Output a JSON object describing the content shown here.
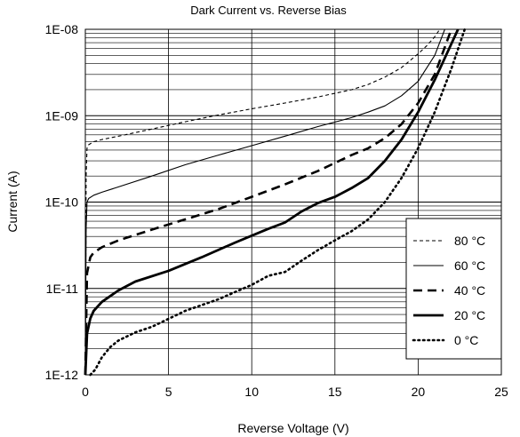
{
  "chart_data": {
    "type": "line",
    "title": "Dark Current vs. Reverse Bias",
    "xlabel": "Reverse Voltage (V)",
    "ylabel": "Current (A)",
    "xlim": [
      0,
      25
    ],
    "ylim": [
      1e-12,
      1e-08
    ],
    "y_scale": "log",
    "grid": true,
    "legend_position": "bottom-right",
    "x_ticks": [
      0,
      5,
      10,
      15,
      20,
      25
    ],
    "x_tick_labels": [
      "0",
      "5",
      "10",
      "15",
      "20",
      "25"
    ],
    "y_ticks": [
      1e-12,
      1e-11,
      1e-10,
      1e-09,
      1e-08
    ],
    "y_tick_labels": [
      "1E-12",
      "1E-11",
      "1E-10",
      "1E-09",
      "1E-08"
    ],
    "series": [
      {
        "name": "80 °C",
        "line_style": "thin-dashed",
        "x": [
          0,
          0.05,
          0.1,
          0.2,
          0.5,
          1,
          2,
          4,
          6,
          8,
          10,
          12,
          14,
          16,
          17,
          18,
          19,
          20,
          20.5,
          21,
          21.3
        ],
        "y": [
          1e-12,
          2e-10,
          4.2e-10,
          4.6e-10,
          5e-10,
          5.3e-10,
          5.8e-10,
          7e-10,
          8.5e-10,
          1.02e-09,
          1.2e-09,
          1.4e-09,
          1.65e-09,
          2e-09,
          2.3e-09,
          2.8e-09,
          3.6e-09,
          5.2e-09,
          6.4e-09,
          8.2e-09,
          1e-08
        ]
      },
      {
        "name": "60 °C",
        "line_style": "thin-solid",
        "x": [
          0,
          0.05,
          0.1,
          0.2,
          0.5,
          1,
          2,
          4,
          6,
          8,
          10,
          12,
          14,
          16,
          17,
          18,
          19,
          20,
          21,
          21.6
        ],
        "y": [
          1e-12,
          5e-11,
          1e-10,
          1.1e-10,
          1.2e-10,
          1.3e-10,
          1.5e-10,
          2e-10,
          2.7e-10,
          3.5e-10,
          4.5e-10,
          5.8e-10,
          7.5e-10,
          9.5e-10,
          1.1e-09,
          1.3e-09,
          1.7e-09,
          2.5e-09,
          5e-09,
          1e-08
        ]
      },
      {
        "name": "40 °C",
        "line_style": "thick-dashed",
        "x": [
          0,
          0.1,
          0.3,
          0.5,
          1,
          2,
          4,
          6,
          8,
          10,
          12,
          14,
          16,
          17,
          18,
          19,
          20,
          21,
          22
        ],
        "y": [
          1e-12,
          1.5e-11,
          2.3e-11,
          2.6e-11,
          3e-11,
          3.6e-11,
          4.8e-11,
          6.3e-11,
          8.3e-11,
          1.15e-10,
          1.6e-10,
          2.3e-10,
          3.5e-10,
          4.2e-10,
          5.5e-10,
          8e-10,
          1.4e-09,
          3e-09,
          1e-08
        ]
      },
      {
        "name": "20 °C",
        "line_style": "thick-solid",
        "x": [
          0,
          0.1,
          0.3,
          0.5,
          1,
          2,
          3,
          5,
          7,
          9,
          11,
          12,
          13,
          14,
          15,
          16,
          17,
          18,
          19,
          20,
          21,
          22,
          22.4
        ],
        "y": [
          1e-12,
          3e-12,
          4.5e-12,
          5.5e-12,
          7e-12,
          9.5e-12,
          1.2e-11,
          1.6e-11,
          2.3e-11,
          3.4e-11,
          4.9e-11,
          5.8e-11,
          7.8e-11,
          9.8e-11,
          1.15e-10,
          1.45e-10,
          1.9e-10,
          3e-10,
          5.3e-10,
          1.1e-09,
          2.6e-09,
          6.8e-09,
          1e-08
        ]
      },
      {
        "name": "0 °C",
        "line_style": "dotted",
        "x": [
          0.3,
          0.6,
          1,
          1.5,
          2,
          3,
          4,
          6,
          8,
          10,
          11,
          12,
          13,
          14,
          15,
          16,
          17,
          18,
          19,
          20,
          21,
          22,
          22.8
        ],
        "y": [
          1e-12,
          1.15e-12,
          1.6e-12,
          2.1e-12,
          2.5e-12,
          3.1e-12,
          3.6e-12,
          5.5e-12,
          7.5e-12,
          1.1e-11,
          1.4e-11,
          1.55e-11,
          2.1e-11,
          2.8e-11,
          3.6e-11,
          4.6e-11,
          6.3e-11,
          1e-10,
          1.9e-10,
          4.2e-10,
          1.1e-09,
          3.5e-09,
          1e-08
        ]
      }
    ]
  }
}
